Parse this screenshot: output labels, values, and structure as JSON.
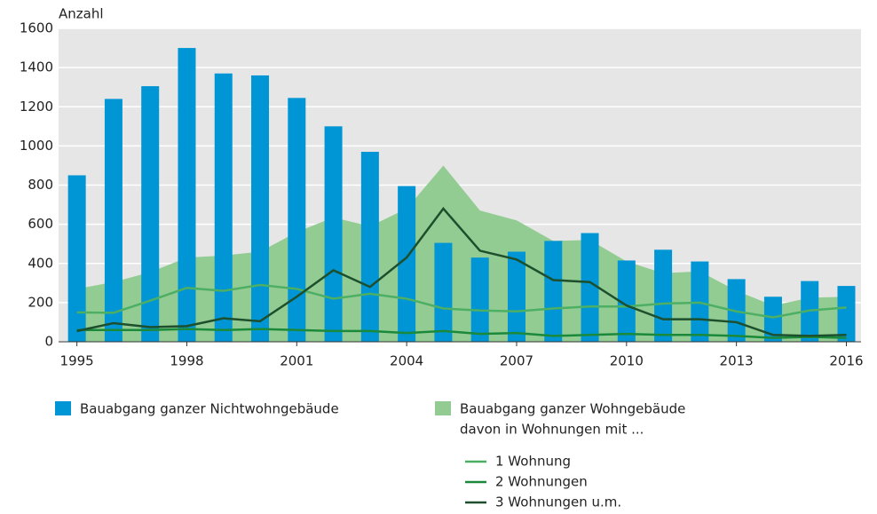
{
  "chart_data": {
    "type": "bar",
    "ylabel": "Anzahl",
    "x": [
      1995,
      1996,
      1997,
      1998,
      1999,
      2000,
      2001,
      2002,
      2003,
      2004,
      2005,
      2006,
      2007,
      2008,
      2009,
      2010,
      2011,
      2012,
      2013,
      2014,
      2015,
      2016
    ],
    "xlim": [
      1994.5,
      2016.4
    ],
    "xticks": [
      1995,
      1998,
      2001,
      2004,
      2007,
      2010,
      2013,
      2016
    ],
    "ylim": [
      0,
      1600
    ],
    "yticks": [
      0,
      200,
      400,
      600,
      800,
      1000,
      1200,
      1400,
      1600
    ],
    "grid": true,
    "legend_note": "davon in Wohnungen mit ...",
    "series": [
      {
        "name": "Bauabgang ganzer Nichtwohngebäude",
        "type": "bar",
        "color": "#0095d4",
        "values": [
          850,
          1240,
          1305,
          1500,
          1370,
          1360,
          1245,
          1100,
          970,
          795,
          505,
          430,
          460,
          515,
          555,
          415,
          470,
          410,
          320,
          230,
          310,
          285
        ]
      },
      {
        "name": "Bauabgang ganzer Wohngebäude",
        "type": "area",
        "color": "#93cc93",
        "values": [
          270,
          305,
          355,
          430,
          440,
          460,
          560,
          635,
          590,
          680,
          900,
          670,
          620,
          515,
          520,
          410,
          350,
          360,
          260,
          185,
          225,
          230
        ]
      },
      {
        "name": "1 Wohnung",
        "type": "line",
        "color": "#4caf63",
        "values": [
          150,
          148,
          210,
          275,
          260,
          290,
          270,
          220,
          245,
          220,
          170,
          160,
          155,
          170,
          180,
          180,
          195,
          200,
          155,
          125,
          160,
          175
        ]
      },
      {
        "name": "2 Wohnungen",
        "type": "line",
        "color": "#1a8a3a",
        "values": [
          60,
          60,
          60,
          65,
          60,
          65,
          60,
          55,
          55,
          45,
          55,
          40,
          45,
          30,
          35,
          40,
          35,
          35,
          30,
          20,
          25,
          20
        ]
      },
      {
        "name": "3 Wohnungen u.m.",
        "type": "line",
        "color": "#1d4f2c",
        "values": [
          55,
          95,
          75,
          80,
          120,
          105,
          230,
          365,
          280,
          430,
          680,
          465,
          420,
          315,
          305,
          185,
          115,
          115,
          100,
          35,
          30,
          35
        ]
      }
    ]
  }
}
